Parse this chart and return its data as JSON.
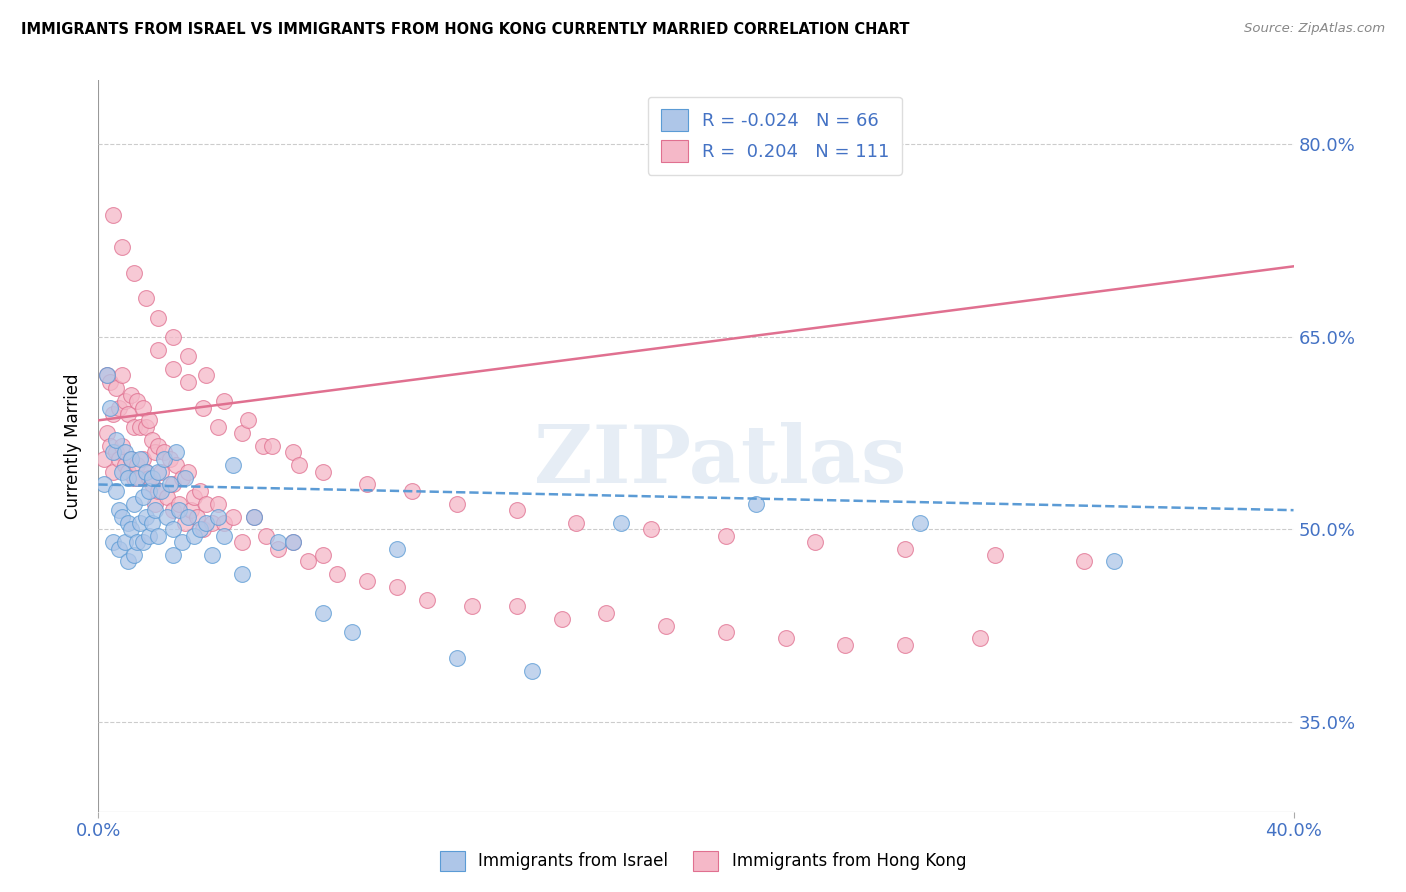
{
  "title": "IMMIGRANTS FROM ISRAEL VS IMMIGRANTS FROM HONG KONG CURRENTLY MARRIED CORRELATION CHART",
  "source": "Source: ZipAtlas.com",
  "ylabel": "Currently Married",
  "ytick_labels": [
    "80.0%",
    "65.0%",
    "50.0%",
    "35.0%"
  ],
  "ytick_values": [
    0.8,
    0.65,
    0.5,
    0.35
  ],
  "xlim": [
    0.0,
    0.4
  ],
  "ylim": [
    0.28,
    0.85
  ],
  "xtick_labels": [
    "0.0%",
    "40.0%"
  ],
  "xtick_values": [
    0.0,
    0.4
  ],
  "legend_r_israel": "-0.024",
  "legend_n_israel": "66",
  "legend_r_hk": "0.204",
  "legend_n_hk": "111",
  "color_israel": "#aec6e8",
  "color_hk": "#f5b8c8",
  "line_color_israel": "#5b9bd5",
  "line_color_hk": "#e07090",
  "watermark": "ZIPatlas",
  "israel_line_x0": 0.0,
  "israel_line_y0": 0.535,
  "israel_line_x1": 0.4,
  "israel_line_y1": 0.515,
  "hk_line_x0": 0.0,
  "hk_line_y0": 0.585,
  "hk_line_x1": 0.4,
  "hk_line_y1": 0.705,
  "israel_points_x": [
    0.002,
    0.003,
    0.004,
    0.005,
    0.005,
    0.006,
    0.006,
    0.007,
    0.007,
    0.008,
    0.008,
    0.009,
    0.009,
    0.01,
    0.01,
    0.01,
    0.011,
    0.011,
    0.012,
    0.012,
    0.013,
    0.013,
    0.014,
    0.014,
    0.015,
    0.015,
    0.016,
    0.016,
    0.017,
    0.017,
    0.018,
    0.018,
    0.019,
    0.02,
    0.02,
    0.021,
    0.022,
    0.023,
    0.024,
    0.025,
    0.025,
    0.026,
    0.027,
    0.028,
    0.029,
    0.03,
    0.032,
    0.034,
    0.036,
    0.038,
    0.04,
    0.042,
    0.045,
    0.048,
    0.052,
    0.06,
    0.065,
    0.075,
    0.085,
    0.1,
    0.12,
    0.145,
    0.175,
    0.22,
    0.275,
    0.34
  ],
  "israel_points_y": [
    0.535,
    0.62,
    0.595,
    0.56,
    0.49,
    0.53,
    0.57,
    0.515,
    0.485,
    0.545,
    0.51,
    0.56,
    0.49,
    0.54,
    0.505,
    0.475,
    0.555,
    0.5,
    0.52,
    0.48,
    0.54,
    0.49,
    0.555,
    0.505,
    0.525,
    0.49,
    0.545,
    0.51,
    0.53,
    0.495,
    0.54,
    0.505,
    0.515,
    0.545,
    0.495,
    0.53,
    0.555,
    0.51,
    0.535,
    0.5,
    0.48,
    0.56,
    0.515,
    0.49,
    0.54,
    0.51,
    0.495,
    0.5,
    0.505,
    0.48,
    0.51,
    0.495,
    0.55,
    0.465,
    0.51,
    0.49,
    0.49,
    0.435,
    0.42,
    0.485,
    0.4,
    0.39,
    0.505,
    0.52,
    0.505,
    0.475
  ],
  "hk_points_x": [
    0.002,
    0.003,
    0.003,
    0.004,
    0.004,
    0.005,
    0.005,
    0.006,
    0.006,
    0.007,
    0.007,
    0.008,
    0.008,
    0.009,
    0.009,
    0.01,
    0.01,
    0.011,
    0.011,
    0.012,
    0.012,
    0.013,
    0.013,
    0.014,
    0.014,
    0.015,
    0.015,
    0.016,
    0.016,
    0.017,
    0.017,
    0.018,
    0.018,
    0.019,
    0.019,
    0.02,
    0.02,
    0.021,
    0.022,
    0.023,
    0.024,
    0.025,
    0.025,
    0.026,
    0.027,
    0.028,
    0.029,
    0.03,
    0.031,
    0.032,
    0.033,
    0.034,
    0.035,
    0.036,
    0.038,
    0.04,
    0.042,
    0.045,
    0.048,
    0.052,
    0.056,
    0.06,
    0.065,
    0.07,
    0.075,
    0.08,
    0.09,
    0.1,
    0.11,
    0.125,
    0.14,
    0.155,
    0.17,
    0.19,
    0.21,
    0.23,
    0.25,
    0.27,
    0.295,
    0.02,
    0.025,
    0.03,
    0.035,
    0.04,
    0.048,
    0.055,
    0.065,
    0.075,
    0.09,
    0.105,
    0.12,
    0.14,
    0.16,
    0.185,
    0.21,
    0.24,
    0.27,
    0.3,
    0.33,
    0.005,
    0.008,
    0.012,
    0.016,
    0.02,
    0.025,
    0.03,
    0.036,
    0.042,
    0.05,
    0.058,
    0.067
  ],
  "hk_points_y": [
    0.555,
    0.62,
    0.575,
    0.615,
    0.565,
    0.59,
    0.545,
    0.61,
    0.56,
    0.595,
    0.555,
    0.62,
    0.565,
    0.6,
    0.55,
    0.59,
    0.545,
    0.605,
    0.555,
    0.58,
    0.54,
    0.6,
    0.55,
    0.58,
    0.54,
    0.595,
    0.555,
    0.58,
    0.545,
    0.585,
    0.54,
    0.57,
    0.535,
    0.56,
    0.52,
    0.565,
    0.53,
    0.545,
    0.56,
    0.525,
    0.555,
    0.535,
    0.515,
    0.55,
    0.52,
    0.54,
    0.505,
    0.545,
    0.515,
    0.525,
    0.51,
    0.53,
    0.5,
    0.52,
    0.505,
    0.52,
    0.505,
    0.51,
    0.49,
    0.51,
    0.495,
    0.485,
    0.49,
    0.475,
    0.48,
    0.465,
    0.46,
    0.455,
    0.445,
    0.44,
    0.44,
    0.43,
    0.435,
    0.425,
    0.42,
    0.415,
    0.41,
    0.41,
    0.415,
    0.64,
    0.625,
    0.615,
    0.595,
    0.58,
    0.575,
    0.565,
    0.56,
    0.545,
    0.535,
    0.53,
    0.52,
    0.515,
    0.505,
    0.5,
    0.495,
    0.49,
    0.485,
    0.48,
    0.475,
    0.745,
    0.72,
    0.7,
    0.68,
    0.665,
    0.65,
    0.635,
    0.62,
    0.6,
    0.585,
    0.565,
    0.55
  ]
}
